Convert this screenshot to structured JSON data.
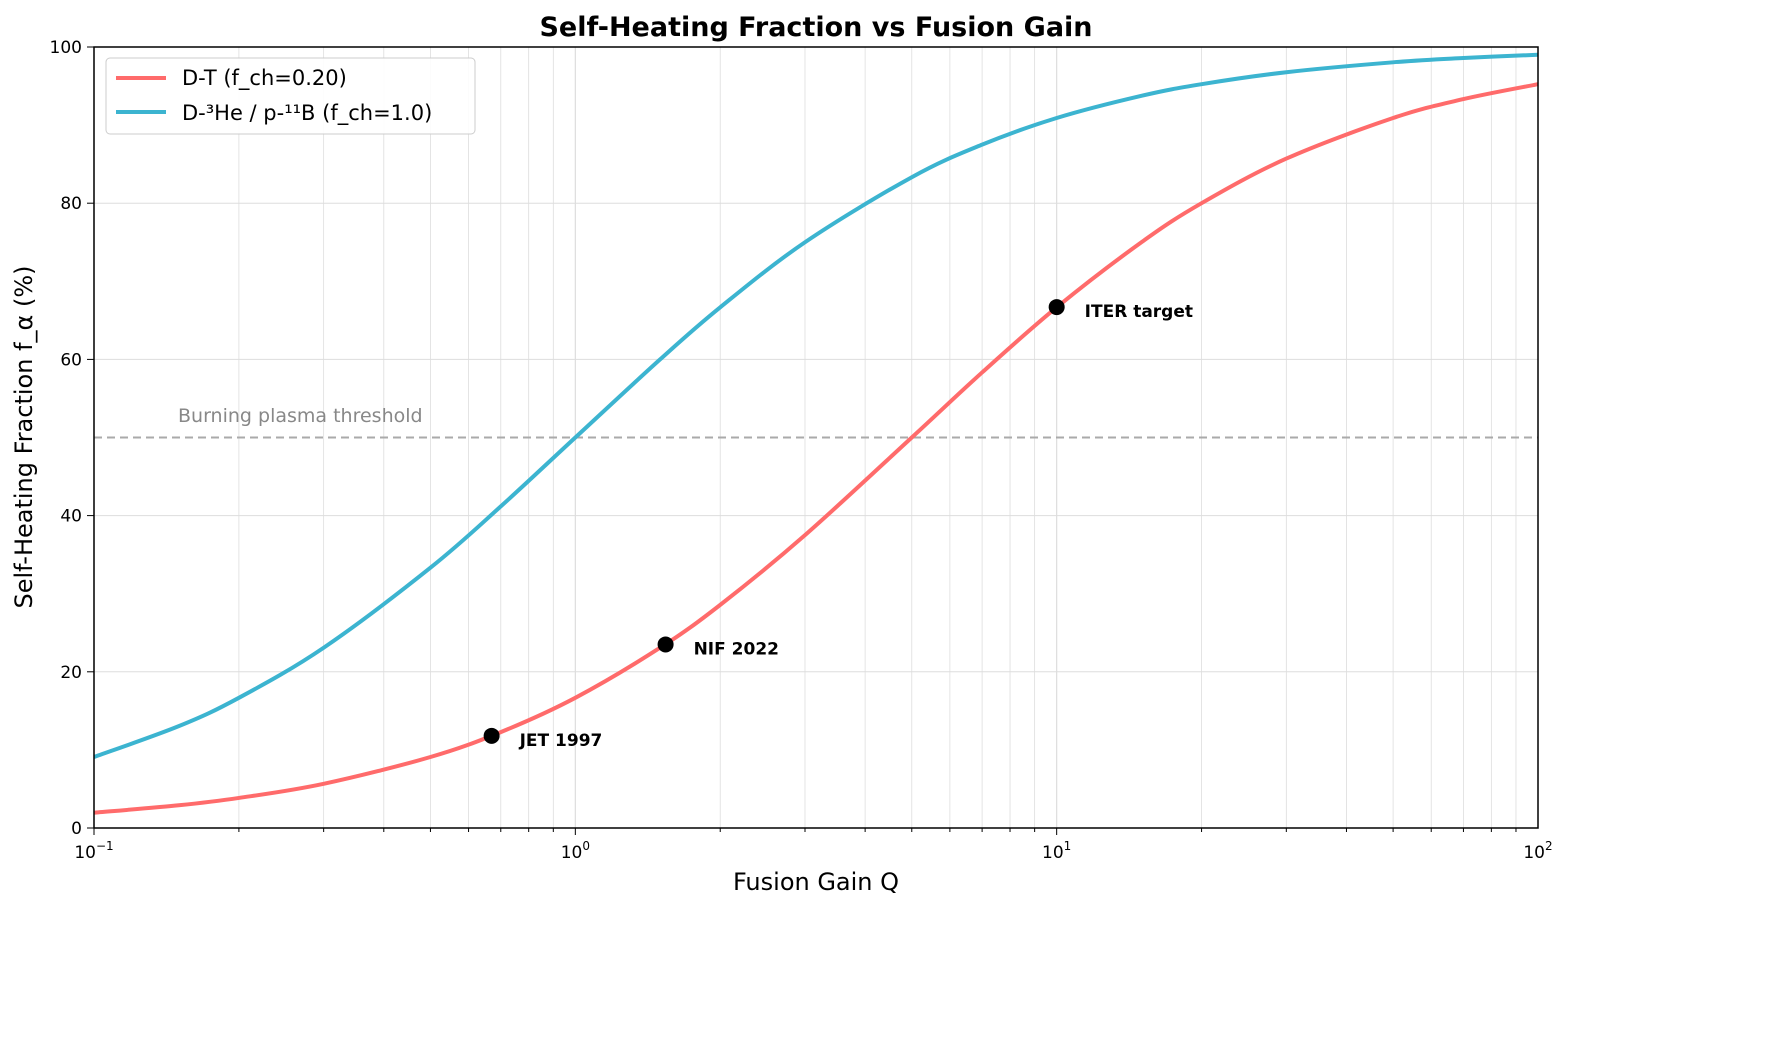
{
  "chart_data": {
    "type": "line",
    "title": "Self-Heating Fraction vs Fusion Gain",
    "xlabel": "Fusion Gain Q",
    "ylabel": "Self-Heating Fraction f_α (%)",
    "xscale": "log",
    "xlim": [
      0.1,
      100
    ],
    "ylim": [
      0,
      100
    ],
    "xticks": [
      {
        "base": "10",
        "exp": "−1"
      },
      {
        "base": "10",
        "exp": "0"
      },
      {
        "base": "10",
        "exp": "1"
      },
      {
        "base": "10",
        "exp": "2"
      }
    ],
    "yticks": [
      "0",
      "20",
      "40",
      "60",
      "80",
      "100"
    ],
    "grid": true,
    "legend_placement": "top-left",
    "x": [
      0.1,
      0.15,
      0.2,
      0.3,
      0.5,
      0.7,
      1,
      1.5,
      2,
      3,
      5,
      7,
      10,
      15,
      20,
      30,
      50,
      70,
      100
    ],
    "series": [
      {
        "name": "D-T (f_ch=0.20)",
        "color": "#ff6b6b",
        "values": [
          1.96,
          2.91,
          3.85,
          5.66,
          9.09,
          12.28,
          16.67,
          23.08,
          28.57,
          37.5,
          50,
          58.33,
          66.67,
          75,
          80,
          85.71,
          90.91,
          93.33,
          95.24
        ]
      },
      {
        "name": "D-³He / p-¹¹B (f_ch=1.0)",
        "color": "#3cb4d0",
        "values": [
          9.09,
          13.04,
          16.67,
          23.08,
          33.33,
          41.18,
          50,
          60,
          66.67,
          75,
          83.33,
          87.5,
          90.91,
          93.75,
          95.24,
          96.77,
          98.04,
          98.59,
          99.01
        ]
      }
    ],
    "threshold": {
      "y": 50,
      "label": "Burning plasma threshold",
      "color": "#aaaaaa"
    },
    "annotations": [
      {
        "label": "JET 1997",
        "x": 0.67,
        "y": 11.8
      },
      {
        "label": "NIF 2022",
        "x": 1.54,
        "y": 23.5
      },
      {
        "label": "ITER target",
        "x": 10,
        "y": 66.7
      }
    ]
  }
}
